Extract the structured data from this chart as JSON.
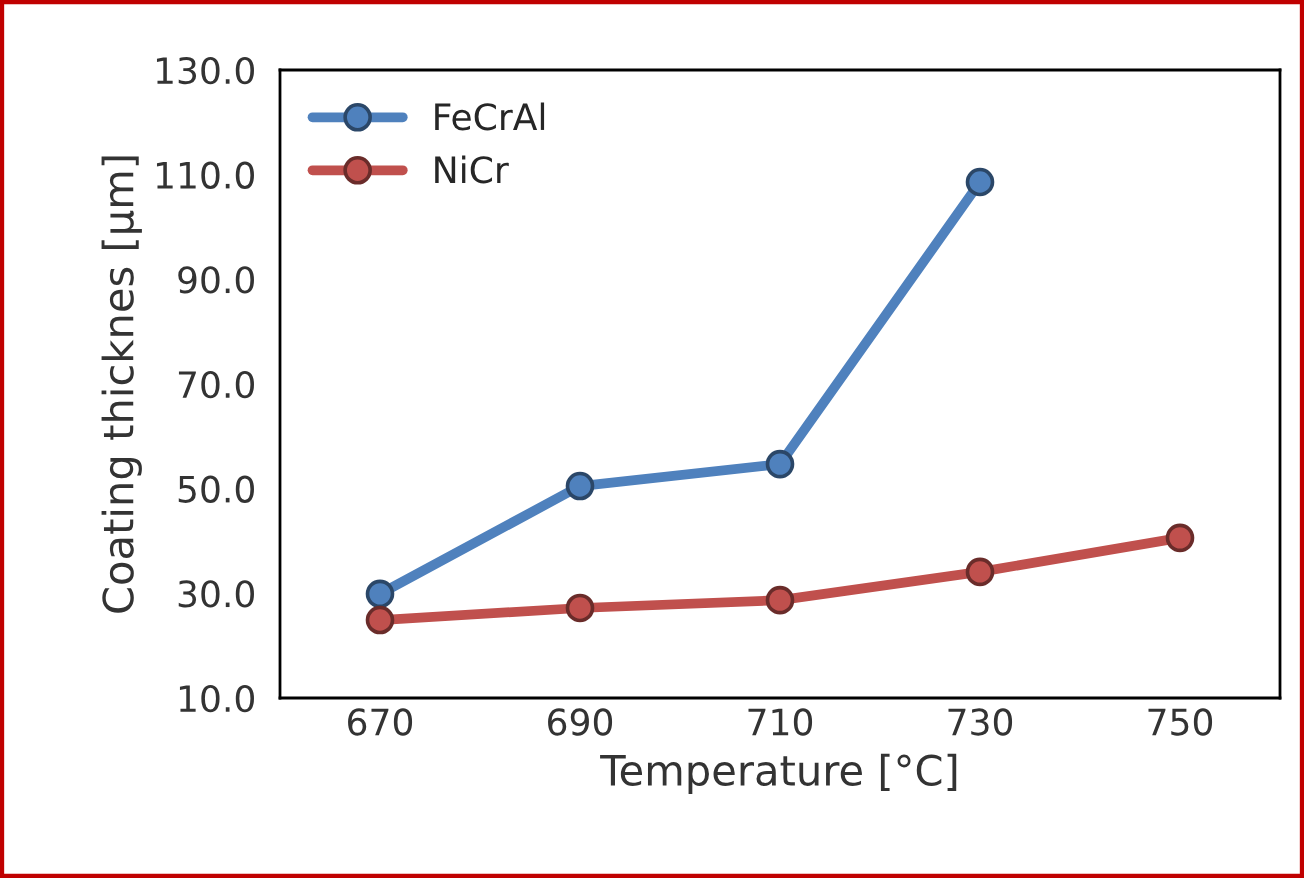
{
  "chart_data": {
    "type": "line",
    "xlabel": "Temperature [°C]",
    "ylabel": "Coating thicknes [µm]",
    "categories": [
      "670",
      "690",
      "710",
      "730",
      "750"
    ],
    "series": [
      {
        "name": "FeCrAl",
        "color": "#4f81bd",
        "values": [
          29.9,
          50.5,
          54.7,
          108.6,
          null
        ]
      },
      {
        "name": "NiCr",
        "color": "#c0504d",
        "values": [
          24.9,
          27.2,
          28.7,
          34.1,
          40.6
        ]
      }
    ],
    "ylim": [
      10,
      130
    ],
    "yticks": [
      {
        "value": 10,
        "label": "10.0"
      },
      {
        "value": 30,
        "label": "30.0"
      },
      {
        "value": 50,
        "label": "50.0"
      },
      {
        "value": 70,
        "label": "70.0"
      },
      {
        "value": 90,
        "label": "90.0"
      },
      {
        "value": 110,
        "label": "110.0"
      },
      {
        "value": 130,
        "label": "130.0"
      }
    ],
    "grid": false,
    "legend": "top left",
    "marker": "circle",
    "line_style": "solid"
  }
}
